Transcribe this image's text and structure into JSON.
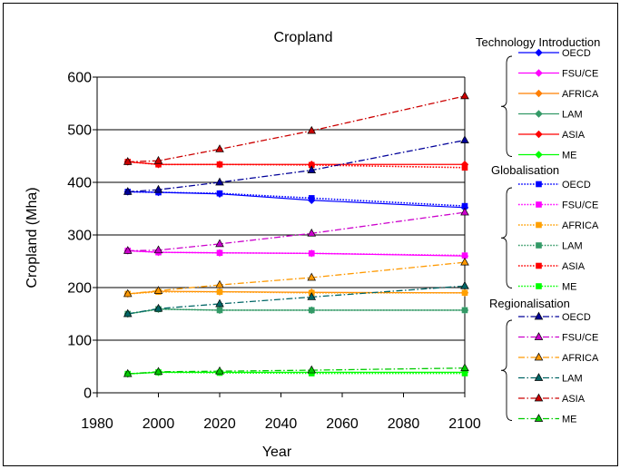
{
  "chart_data": {
    "type": "line",
    "title": "Cropland",
    "xlabel": "Year",
    "ylabel": "Cropland (Mha)",
    "xlim": [
      1980,
      2100
    ],
    "ylim": [
      0,
      600
    ],
    "x_ticks": [
      1980,
      2000,
      2020,
      2040,
      2060,
      2080,
      2100
    ],
    "y_ticks": [
      0,
      100,
      200,
      300,
      400,
      500,
      600
    ],
    "grid": {
      "horizontal": true,
      "vertical": false
    },
    "legend": "right",
    "x": [
      1990,
      2000,
      2020,
      2050,
      2100
    ],
    "groups": [
      {
        "name": "Technology Introduction",
        "series": [
          {
            "name": "OECD",
            "color": "#0000FF",
            "values": [
              382,
              381,
              378,
              366,
              352
            ]
          },
          {
            "name": "FSU/CE",
            "color": "#FF00FF",
            "values": [
              270,
              267,
              266,
              265,
              260
            ]
          },
          {
            "name": "AFRICA",
            "color": "#FF7F00",
            "values": [
              188,
              193,
              192,
              191,
              190
            ]
          },
          {
            "name": "LAM",
            "color": "#339966",
            "values": [
              150,
              159,
              157,
              157,
              157
            ]
          },
          {
            "name": "ASIA",
            "color": "#FF0000",
            "values": [
              439,
              434,
              434,
              434,
              434
            ]
          },
          {
            "name": "ME",
            "color": "#00FF00",
            "values": [
              36,
              39,
              39,
              39,
              39
            ]
          }
        ]
      },
      {
        "name": "Globalisation",
        "series": [
          {
            "name": "OECD",
            "color": "#0000FF",
            "values": [
              382,
              381,
              379,
              370,
              355
            ]
          },
          {
            "name": "FSU/CE",
            "color": "#FF00FF",
            "values": [
              270,
              267,
              266,
              265,
              261
            ]
          },
          {
            "name": "AFRICA",
            "color": "#FFA000",
            "values": [
              188,
              192,
              192,
              190,
              190
            ]
          },
          {
            "name": "LAM",
            "color": "#339966",
            "values": [
              150,
              159,
              157,
              157,
              157
            ]
          },
          {
            "name": "ASIA",
            "color": "#FF0000",
            "values": [
              439,
              434,
              434,
              433,
              428
            ]
          },
          {
            "name": "ME",
            "color": "#00FF00",
            "values": [
              36,
              39,
              38,
              37,
              37
            ]
          }
        ]
      },
      {
        "name": "Regionalisation",
        "series": [
          {
            "name": "OECD",
            "color": "#000099",
            "values": [
              382,
              386,
              400,
              423,
              480
            ]
          },
          {
            "name": "FSU/CE",
            "color": "#CC00CC",
            "values": [
              270,
              271,
              283,
              303,
              343
            ]
          },
          {
            "name": "AFRICA",
            "color": "#FF9900",
            "values": [
              188,
              194,
              205,
              219,
              248
            ]
          },
          {
            "name": "LAM",
            "color": "#006666",
            "values": [
              150,
              160,
              169,
              182,
              203
            ]
          },
          {
            "name": "ASIA",
            "color": "#CC0000",
            "values": [
              439,
              441,
              463,
              498,
              564
            ]
          },
          {
            "name": "ME",
            "color": "#00CC00",
            "values": [
              36,
              40,
              41,
              43,
              47
            ]
          }
        ]
      }
    ]
  }
}
